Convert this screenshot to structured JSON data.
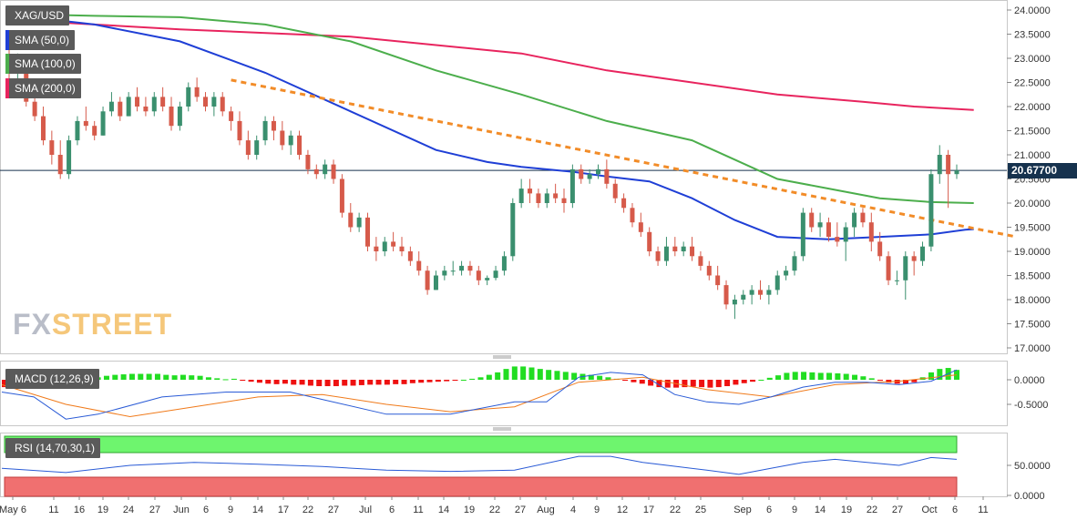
{
  "labels": {
    "symbol": "XAG/USD",
    "sma50": "SMA (50,0)",
    "sma100": "SMA (100,0)",
    "sma200": "SMA (200,0)",
    "macd": "MACD (12,26,9)",
    "rsi": "RSI (14,70,30,1)"
  },
  "watermark": {
    "fx": "FX",
    "street": "STREET"
  },
  "last_price": "20.67700",
  "colors": {
    "up": "#3a8f6e",
    "down": "#d65a4a",
    "sma50": "#1f3fd6",
    "sma100": "#4cae4c",
    "sma200": "#e8245e",
    "trendline": "#f28c28",
    "macd_line": "#2a5bd6",
    "signal_line": "#f07a1a",
    "hist_pos": "#22dd22",
    "hist_neg": "#ee1111",
    "rsi_line": "#2a5bd6",
    "rsi_overbought": "#6ef56e",
    "rsi_oversold": "#f07070"
  },
  "chart_data": [
    {
      "type": "candlestick",
      "title": "XAG/USD",
      "ylim": [
        17.0,
        24.0
      ],
      "yticks": [
        "24.0000",
        "23.5000",
        "23.0000",
        "22.5000",
        "22.0000",
        "21.5000",
        "21.0000",
        "20.5000",
        "20.0000",
        "19.5000",
        "19.0000",
        "18.5000",
        "18.0000",
        "17.5000",
        "17.0000"
      ],
      "xticks": [
        "May 6",
        "11",
        "16",
        "19",
        "24",
        "27",
        "Jun",
        "6",
        "9",
        "14",
        "17",
        "22",
        "27",
        "Jul",
        "6",
        "11",
        "14",
        "19",
        "22",
        "27",
        "Aug",
        "4",
        "9",
        "12",
        "17",
        "22",
        "25",
        "Sep",
        "6",
        "9",
        "14",
        "19",
        "22",
        "27",
        "Oct",
        "6",
        "11"
      ],
      "candles": [
        [
          22.8,
          23.2,
          22.4,
          22.7
        ],
        [
          22.7,
          23.1,
          22.5,
          22.75
        ],
        [
          22.75,
          22.9,
          22.0,
          22.1
        ],
        [
          22.1,
          22.4,
          21.7,
          21.8
        ],
        [
          21.8,
          22.0,
          21.2,
          21.3
        ],
        [
          21.3,
          21.5,
          20.8,
          21.0
        ],
        [
          21.0,
          21.3,
          20.5,
          20.6
        ],
        [
          20.6,
          21.4,
          20.5,
          21.3
        ],
        [
          21.3,
          21.8,
          21.2,
          21.7
        ],
        [
          21.7,
          22.0,
          21.5,
          21.6
        ],
        [
          21.6,
          21.7,
          21.3,
          21.4
        ],
        [
          21.4,
          22.0,
          21.4,
          21.9
        ],
        [
          21.9,
          22.3,
          21.8,
          22.1
        ],
        [
          22.1,
          22.2,
          21.7,
          21.8
        ],
        [
          21.8,
          22.3,
          21.8,
          22.2
        ],
        [
          22.2,
          22.4,
          21.9,
          22.0
        ],
        [
          22.0,
          22.2,
          21.8,
          21.9
        ],
        [
          21.9,
          22.3,
          21.8,
          22.2
        ],
        [
          22.2,
          22.4,
          21.9,
          22.0
        ],
        [
          22.0,
          22.2,
          21.5,
          21.6
        ],
        [
          21.6,
          22.1,
          21.5,
          22.0
        ],
        [
          22.0,
          22.5,
          21.9,
          22.4
        ],
        [
          22.4,
          22.6,
          22.1,
          22.2
        ],
        [
          22.2,
          22.3,
          21.9,
          22.0
        ],
        [
          22.0,
          22.3,
          21.8,
          22.2
        ],
        [
          22.2,
          22.3,
          21.8,
          21.9
        ],
        [
          21.9,
          22.0,
          21.5,
          21.7
        ],
        [
          21.7,
          21.9,
          21.2,
          21.3
        ],
        [
          21.3,
          21.5,
          20.9,
          21.0
        ],
        [
          21.0,
          21.4,
          20.9,
          21.3
        ],
        [
          21.3,
          21.8,
          21.2,
          21.7
        ],
        [
          21.7,
          21.8,
          21.3,
          21.5
        ],
        [
          21.5,
          21.7,
          21.1,
          21.2
        ],
        [
          21.2,
          21.5,
          21.0,
          21.4
        ],
        [
          21.4,
          21.5,
          20.9,
          21.0
        ],
        [
          21.0,
          21.1,
          20.6,
          20.7
        ],
        [
          20.7,
          20.8,
          20.5,
          20.6
        ],
        [
          20.6,
          20.9,
          20.5,
          20.8
        ],
        [
          20.8,
          20.9,
          20.4,
          20.5
        ],
        [
          20.5,
          20.6,
          19.7,
          19.8
        ],
        [
          19.8,
          20.0,
          19.4,
          19.5
        ],
        [
          19.5,
          19.8,
          19.4,
          19.7
        ],
        [
          19.7,
          19.8,
          19.0,
          19.1
        ],
        [
          19.1,
          19.3,
          18.8,
          19.0
        ],
        [
          19.0,
          19.3,
          18.9,
          19.2
        ],
        [
          19.2,
          19.4,
          19.0,
          19.1
        ],
        [
          19.1,
          19.3,
          18.9,
          19.0
        ],
        [
          19.0,
          19.1,
          18.7,
          18.8
        ],
        [
          18.8,
          19.0,
          18.5,
          18.6
        ],
        [
          18.6,
          18.7,
          18.1,
          18.2
        ],
        [
          18.2,
          18.6,
          18.2,
          18.5
        ],
        [
          18.5,
          18.7,
          18.4,
          18.6
        ],
        [
          18.6,
          18.8,
          18.5,
          18.6
        ],
        [
          18.6,
          18.8,
          18.5,
          18.7
        ],
        [
          18.7,
          18.8,
          18.5,
          18.6
        ],
        [
          18.6,
          18.7,
          18.3,
          18.4
        ],
        [
          18.4,
          18.5,
          18.3,
          18.45
        ],
        [
          18.45,
          18.7,
          18.4,
          18.6
        ],
        [
          18.6,
          19.0,
          18.5,
          18.9
        ],
        [
          18.9,
          20.1,
          18.8,
          20.0
        ],
        [
          20.0,
          20.5,
          19.9,
          20.3
        ],
        [
          20.3,
          20.5,
          20.0,
          20.2
        ],
        [
          20.2,
          20.3,
          19.9,
          20.0
        ],
        [
          20.0,
          20.3,
          19.9,
          20.2
        ],
        [
          20.2,
          20.4,
          20.0,
          20.1
        ],
        [
          20.1,
          20.3,
          19.8,
          20.0
        ],
        [
          20.0,
          20.8,
          19.9,
          20.7
        ],
        [
          20.7,
          20.8,
          20.4,
          20.5
        ],
        [
          20.5,
          20.7,
          20.4,
          20.6
        ],
        [
          20.6,
          20.8,
          20.5,
          20.7
        ],
        [
          20.7,
          20.9,
          20.3,
          20.4
        ],
        [
          20.4,
          20.5,
          20.0,
          20.1
        ],
        [
          20.1,
          20.2,
          19.8,
          19.9
        ],
        [
          19.9,
          20.0,
          19.5,
          19.6
        ],
        [
          19.6,
          19.8,
          19.3,
          19.4
        ],
        [
          19.4,
          19.5,
          18.9,
          19.0
        ],
        [
          19.0,
          19.1,
          18.7,
          18.8
        ],
        [
          18.8,
          19.3,
          18.7,
          19.1
        ],
        [
          19.1,
          19.3,
          18.9,
          19.0
        ],
        [
          19.0,
          19.2,
          18.9,
          19.1
        ],
        [
          19.1,
          19.3,
          18.8,
          18.9
        ],
        [
          18.9,
          19.0,
          18.6,
          18.7
        ],
        [
          18.7,
          18.8,
          18.4,
          18.5
        ],
        [
          18.5,
          18.7,
          18.2,
          18.3
        ],
        [
          18.3,
          18.4,
          17.8,
          17.9
        ],
        [
          17.9,
          18.1,
          17.6,
          18.0
        ],
        [
          18.0,
          18.2,
          17.9,
          18.1
        ],
        [
          18.1,
          18.3,
          17.9,
          18.2
        ],
        [
          18.2,
          18.4,
          18.0,
          18.1
        ],
        [
          18.1,
          18.3,
          17.9,
          18.2
        ],
        [
          18.2,
          18.6,
          18.1,
          18.5
        ],
        [
          18.5,
          18.7,
          18.4,
          18.6
        ],
        [
          18.6,
          19.0,
          18.5,
          18.9
        ],
        [
          18.9,
          19.9,
          18.8,
          19.8
        ],
        [
          19.8,
          19.9,
          19.4,
          19.5
        ],
        [
          19.5,
          19.8,
          19.3,
          19.6
        ],
        [
          19.6,
          19.7,
          19.2,
          19.3
        ],
        [
          19.3,
          19.6,
          19.1,
          19.2
        ],
        [
          19.2,
          19.6,
          18.8,
          19.5
        ],
        [
          19.5,
          19.9,
          19.3,
          19.8
        ],
        [
          19.8,
          19.9,
          19.5,
          19.6
        ],
        [
          19.6,
          19.8,
          19.0,
          19.2
        ],
        [
          19.2,
          19.4,
          18.8,
          18.9
        ],
        [
          18.9,
          19.0,
          18.3,
          18.4
        ],
        [
          18.4,
          18.6,
          18.3,
          18.4
        ],
        [
          18.4,
          19.0,
          18.0,
          18.9
        ],
        [
          18.9,
          19.0,
          18.5,
          18.8
        ],
        [
          18.8,
          19.2,
          18.7,
          19.1
        ],
        [
          19.1,
          20.7,
          19.0,
          20.6
        ],
        [
          20.6,
          21.2,
          20.4,
          21.0
        ],
        [
          21.0,
          21.1,
          19.9,
          20.6
        ],
        [
          20.6,
          20.8,
          20.5,
          20.677
        ]
      ],
      "sma50": [
        [
          0,
          23.9
        ],
        [
          10,
          23.7
        ],
        [
          20,
          23.35
        ],
        [
          30,
          22.7
        ],
        [
          40,
          21.9
        ],
        [
          50,
          21.1
        ],
        [
          56,
          20.85
        ],
        [
          60,
          20.75
        ],
        [
          66,
          20.65
        ],
        [
          70,
          20.55
        ],
        [
          75,
          20.45
        ],
        [
          80,
          20.1
        ],
        [
          85,
          19.65
        ],
        [
          90,
          19.3
        ],
        [
          96,
          19.25
        ],
        [
          102,
          19.3
        ],
        [
          108,
          19.35
        ],
        [
          112,
          19.45
        ],
        [
          113,
          19.46
        ]
      ],
      "sma100": [
        [
          0,
          23.92
        ],
        [
          10,
          23.88
        ],
        [
          20,
          23.85
        ],
        [
          30,
          23.7
        ],
        [
          40,
          23.35
        ],
        [
          50,
          22.75
        ],
        [
          60,
          22.25
        ],
        [
          70,
          21.7
        ],
        [
          80,
          21.3
        ],
        [
          85,
          20.9
        ],
        [
          90,
          20.5
        ],
        [
          96,
          20.3
        ],
        [
          102,
          20.1
        ],
        [
          108,
          20.02
        ],
        [
          113,
          20.0
        ]
      ],
      "sma200": [
        [
          0,
          23.8
        ],
        [
          20,
          23.6
        ],
        [
          40,
          23.45
        ],
        [
          60,
          23.1
        ],
        [
          70,
          22.75
        ],
        [
          80,
          22.5
        ],
        [
          90,
          22.25
        ],
        [
          100,
          22.1
        ],
        [
          106,
          22.0
        ],
        [
          113,
          21.93
        ]
      ],
      "trendline": [
        [
          26,
          22.55
        ],
        [
          118,
          19.3
        ]
      ]
    },
    {
      "type": "bar",
      "title": "MACD (12,26,9)",
      "yticks": [
        "0.0000",
        "-0.5000"
      ],
      "ylim": [
        -0.85,
        0.25
      ],
      "histogram": [
        -0.15,
        -0.15,
        -0.14,
        -0.13,
        -0.12,
        -0.11,
        -0.1,
        -0.09,
        -0.07,
        -0.05,
        -0.03,
        0.05,
        0.08,
        0.1,
        0.11,
        0.12,
        0.12,
        0.12,
        0.12,
        0.1,
        0.09,
        0.1,
        0.09,
        0.08,
        0.05,
        0.03,
        0.01,
        0.02,
        -0.02,
        -0.04,
        -0.06,
        -0.08,
        -0.09,
        -0.08,
        -0.1,
        -0.1,
        -0.12,
        -0.13,
        -0.13,
        -0.13,
        -0.12,
        -0.12,
        -0.11,
        -0.1,
        -0.1,
        -0.1,
        -0.09,
        -0.09,
        -0.07,
        -0.06,
        -0.05,
        -0.04,
        -0.03,
        -0.02,
        0.0,
        0.02,
        0.05,
        0.1,
        0.15,
        0.22,
        0.27,
        0.27,
        0.25,
        0.22,
        0.2,
        0.18,
        0.16,
        0.14,
        0.12,
        0.1,
        0.08,
        0.05,
        0.02,
        -0.02,
        -0.05,
        -0.08,
        -0.12,
        -0.15,
        -0.16,
        -0.16,
        -0.15,
        -0.14,
        -0.15,
        -0.16,
        -0.15,
        -0.13,
        -0.1,
        -0.07,
        -0.04,
        0.0,
        0.04,
        0.09,
        0.14,
        0.16,
        0.16,
        0.15,
        0.14,
        0.14,
        0.13,
        0.12,
        0.1,
        0.07,
        0.03,
        -0.02,
        -0.06,
        -0.08,
        -0.08,
        -0.05,
        0.05,
        0.15,
        0.22,
        0.24,
        0.2
      ],
      "macd": [
        [
          0,
          -0.25
        ],
        [
          5,
          -0.35
        ],
        [
          10,
          -0.8
        ],
        [
          15,
          -0.7
        ],
        [
          25,
          -0.35
        ],
        [
          35,
          -0.25
        ],
        [
          45,
          -0.25
        ],
        [
          50,
          -0.4
        ],
        [
          60,
          -0.7
        ],
        [
          70,
          -0.7
        ],
        [
          80,
          -0.45
        ],
        [
          85,
          -0.45
        ],
        [
          90,
          0.05
        ],
        [
          95,
          0.15
        ],
        [
          100,
          0.1
        ],
        [
          105,
          -0.3
        ],
        [
          110,
          -0.45
        ],
        [
          115,
          -0.5
        ],
        [
          120,
          -0.35
        ],
        [
          125,
          -0.15
        ],
        [
          130,
          -0.05
        ],
        [
          135,
          -0.05
        ],
        [
          140,
          -0.1
        ],
        [
          145,
          -0.03
        ],
        [
          149,
          0.2
        ]
      ],
      "signal": [
        [
          0,
          -0.1
        ],
        [
          10,
          -0.5
        ],
        [
          20,
          -0.75
        ],
        [
          30,
          -0.55
        ],
        [
          40,
          -0.35
        ],
        [
          50,
          -0.3
        ],
        [
          60,
          -0.5
        ],
        [
          70,
          -0.65
        ],
        [
          80,
          -0.55
        ],
        [
          90,
          -0.05
        ],
        [
          100,
          0.05
        ],
        [
          110,
          -0.2
        ],
        [
          120,
          -0.35
        ],
        [
          130,
          -0.1
        ],
        [
          140,
          -0.03
        ],
        [
          149,
          0.1
        ]
      ]
    },
    {
      "type": "line",
      "title": "RSI (14,70,30,1)",
      "yticks": [
        "50.0000",
        "0.0000"
      ],
      "ylim": [
        0,
        100
      ],
      "rsi": [
        [
          0,
          45
        ],
        [
          10,
          38
        ],
        [
          20,
          50
        ],
        [
          30,
          55
        ],
        [
          40,
          52
        ],
        [
          50,
          48
        ],
        [
          60,
          42
        ],
        [
          70,
          40
        ],
        [
          80,
          42
        ],
        [
          90,
          65
        ],
        [
          95,
          65
        ],
        [
          100,
          55
        ],
        [
          110,
          42
        ],
        [
          115,
          35
        ],
        [
          120,
          45
        ],
        [
          125,
          55
        ],
        [
          130,
          60
        ],
        [
          135,
          55
        ],
        [
          140,
          50
        ],
        [
          145,
          63
        ],
        [
          149,
          60
        ]
      ]
    }
  ]
}
